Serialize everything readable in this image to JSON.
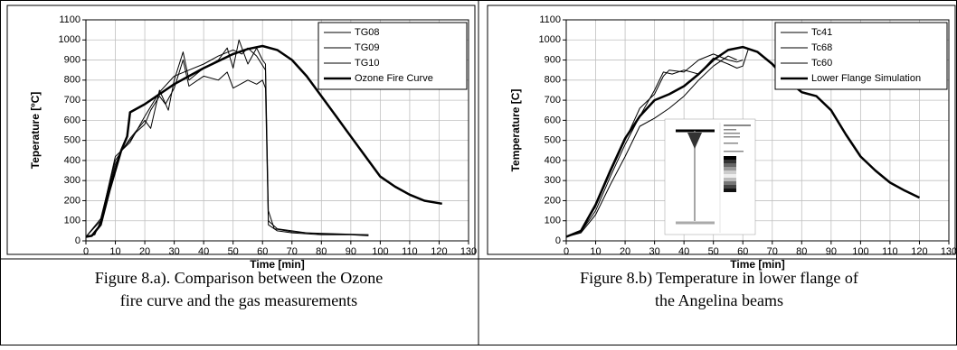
{
  "chart_data": [
    {
      "type": "line",
      "xlabel": "Time  [min]",
      "ylabel": "Teperature [ºC]",
      "xlim": [
        0,
        130
      ],
      "xticks": [
        0,
        10,
        20,
        30,
        40,
        50,
        60,
        70,
        80,
        90,
        100,
        110,
        120,
        130
      ],
      "ylim": [
        0,
        1100
      ],
      "yticks": [
        0,
        100,
        200,
        300,
        400,
        500,
        600,
        700,
        800,
        900,
        1000,
        1100
      ],
      "grid": true,
      "legend": "upper right",
      "caption": [
        "Figure 8.a). Comparison between the Ozone",
        "fire curve and the gas measurements"
      ],
      "series": [
        {
          "name": "TG08",
          "color": "#000000",
          "width": 1,
          "x": [
            0,
            3,
            5,
            8,
            10,
            12,
            15,
            17,
            20,
            22,
            25,
            27,
            30,
            33,
            35,
            40,
            45,
            48,
            50,
            55,
            58,
            60,
            61,
            62,
            65,
            70,
            80,
            90,
            96
          ],
          "values": [
            20,
            30,
            100,
            270,
            380,
            450,
            500,
            540,
            580,
            650,
            720,
            680,
            760,
            900,
            770,
            820,
            800,
            840,
            760,
            800,
            780,
            800,
            760,
            80,
            50,
            40,
            30,
            30,
            25
          ]
        },
        {
          "name": "TG09",
          "color": "#000000",
          "width": 1,
          "x": [
            0,
            5,
            10,
            15,
            20,
            22,
            25,
            28,
            30,
            33,
            35,
            40,
            45,
            48,
            50,
            52,
            55,
            58,
            60,
            61,
            62,
            64,
            70,
            80,
            96
          ],
          "values": [
            20,
            110,
            400,
            510,
            600,
            560,
            750,
            650,
            800,
            940,
            800,
            860,
            900,
            960,
            860,
            1000,
            880,
            960,
            900,
            880,
            150,
            60,
            45,
            35,
            30
          ]
        },
        {
          "name": "TG10",
          "color": "#000000",
          "width": 1,
          "x": [
            0,
            5,
            10,
            15,
            20,
            25,
            30,
            35,
            40,
            45,
            50,
            53,
            55,
            58,
            61,
            62,
            65,
            75,
            96
          ],
          "values": [
            20,
            100,
            420,
            490,
            620,
            740,
            820,
            850,
            880,
            920,
            950,
            930,
            960,
            920,
            850,
            100,
            60,
            40,
            30
          ]
        },
        {
          "name": "Ozone Fire Curve",
          "color": "#000000",
          "width": 2.5,
          "x": [
            0,
            2,
            5,
            8,
            10,
            12,
            14,
            15,
            20,
            25,
            30,
            35,
            40,
            45,
            50,
            55,
            60,
            65,
            70,
            75,
            80,
            85,
            90,
            95,
            100,
            105,
            110,
            115,
            121
          ],
          "values": [
            20,
            25,
            80,
            250,
            350,
            450,
            520,
            640,
            680,
            730,
            780,
            820,
            860,
            895,
            930,
            955,
            970,
            950,
            900,
            820,
            720,
            620,
            520,
            420,
            320,
            270,
            230,
            200,
            185
          ]
        }
      ]
    },
    {
      "type": "line",
      "xlabel": "Time [min]",
      "ylabel": "Temperature [C]",
      "xlim": [
        0,
        130
      ],
      "xticks": [
        0,
        10,
        20,
        30,
        40,
        50,
        60,
        70,
        80,
        90,
        100,
        110,
        120,
        130
      ],
      "ylim": [
        0,
        1100
      ],
      "yticks": [
        0,
        100,
        200,
        300,
        400,
        500,
        600,
        700,
        800,
        900,
        1000,
        1100
      ],
      "grid": true,
      "legend": "upper right",
      "caption": [
        "Figure 8.b) Temperature in lower flange of",
        "the Angelina beams"
      ],
      "series": [
        {
          "name": "Tc41",
          "color": "#000000",
          "width": 1,
          "x": [
            0,
            5,
            10,
            15,
            20,
            25,
            30,
            35,
            40,
            45,
            50,
            55,
            58
          ],
          "values": [
            20,
            40,
            130,
            280,
            420,
            570,
            610,
            660,
            720,
            800,
            870,
            920,
            900
          ]
        },
        {
          "name": "Tc68",
          "color": "#000000",
          "width": 1,
          "x": [
            0,
            5,
            10,
            15,
            20,
            25,
            30,
            33,
            36,
            40,
            45,
            50,
            55,
            58,
            60,
            62
          ],
          "values": [
            20,
            45,
            150,
            320,
            480,
            620,
            750,
            840,
            830,
            850,
            830,
            910,
            880,
            860,
            870,
            960
          ]
        },
        {
          "name": "Tc60",
          "color": "#000000",
          "width": 1,
          "x": [
            0,
            5,
            10,
            15,
            20,
            25,
            30,
            33,
            35,
            40,
            45,
            50,
            55,
            58,
            60
          ],
          "values": [
            20,
            50,
            170,
            340,
            500,
            660,
            730,
            820,
            850,
            840,
            900,
            930,
            900,
            890,
            900
          ]
        },
        {
          "name": "Lower Flange Simulation",
          "color": "#000000",
          "width": 2.5,
          "x": [
            0,
            5,
            10,
            15,
            20,
            25,
            30,
            35,
            40,
            45,
            50,
            55,
            60,
            65,
            70,
            75,
            80,
            85,
            90,
            95,
            100,
            105,
            110,
            115,
            120
          ],
          "values": [
            20,
            50,
            180,
            350,
            510,
            620,
            700,
            730,
            770,
            830,
            900,
            950,
            965,
            940,
            880,
            800,
            740,
            720,
            650,
            530,
            420,
            350,
            290,
            250,
            215
          ]
        }
      ]
    }
  ]
}
